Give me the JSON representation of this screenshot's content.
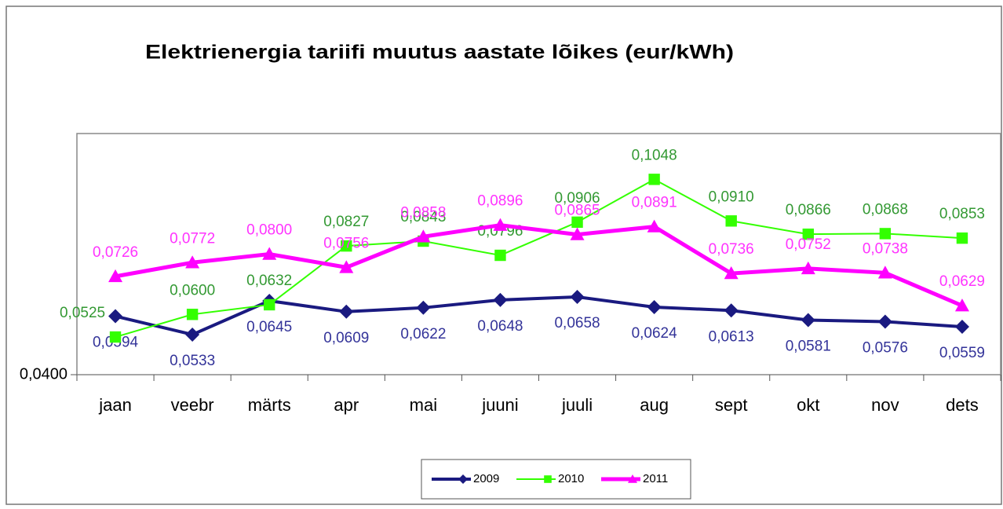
{
  "chart_data": {
    "type": "line",
    "title": "Elektrienergia tariifi muutus  aastate lõikes (eur/kWh)",
    "categories": [
      "jaan",
      "veebr",
      "märts",
      "apr",
      "mai",
      "juuni",
      "juuli",
      "aug",
      "sept",
      "okt",
      "nov",
      "dets"
    ],
    "ylim": [
      0.04,
      0.12
    ],
    "yticks": [
      {
        "value": 0.04,
        "label": "0,0400"
      }
    ],
    "legend": "bottom",
    "series": [
      {
        "name": "2009",
        "color": "#1a1a80",
        "label_color": "#333399",
        "marker": "diamond",
        "values": [
          0.0594,
          0.0533,
          0.0645,
          0.0609,
          0.0622,
          0.0648,
          0.0658,
          0.0624,
          0.0613,
          0.0581,
          0.0576,
          0.0559
        ],
        "value_labels": [
          "0,0594",
          "0,0533",
          "0,0645",
          "0,0609",
          "0,0622",
          "0,0648",
          "0,0658",
          "0,0624",
          "0,0613",
          "0,0581",
          "0,0576",
          "0,0559"
        ]
      },
      {
        "name": "2010",
        "color": "#33ff00",
        "label_color": "#339933",
        "marker": "square",
        "values": [
          0.0525,
          0.06,
          0.0632,
          0.0827,
          0.0843,
          0.0796,
          0.0906,
          0.1048,
          0.091,
          0.0866,
          0.0868,
          0.0853
        ],
        "value_labels": [
          "0,0525",
          "0,0600",
          "0,0632",
          "0,0827",
          "0,0843",
          "0,0796",
          "0,0906",
          "0,1048",
          "0,0910",
          "0,0866",
          "0,0868",
          "0,0853"
        ]
      },
      {
        "name": "2011",
        "color": "#ff00ff",
        "label_color": "#ff33ff",
        "marker": "triangle",
        "values": [
          0.0726,
          0.0772,
          0.08,
          0.0756,
          0.0858,
          0.0896,
          0.0865,
          0.0891,
          0.0736,
          0.0752,
          0.0738,
          0.0629
        ],
        "value_labels": [
          "0,0726",
          "0,0772",
          "0,0800",
          "0,0756",
          "0,0858",
          "0,0896",
          "0,0865",
          "0,0891",
          "0,0736",
          "0,0752",
          "0,0738",
          "0,0629"
        ]
      }
    ]
  }
}
